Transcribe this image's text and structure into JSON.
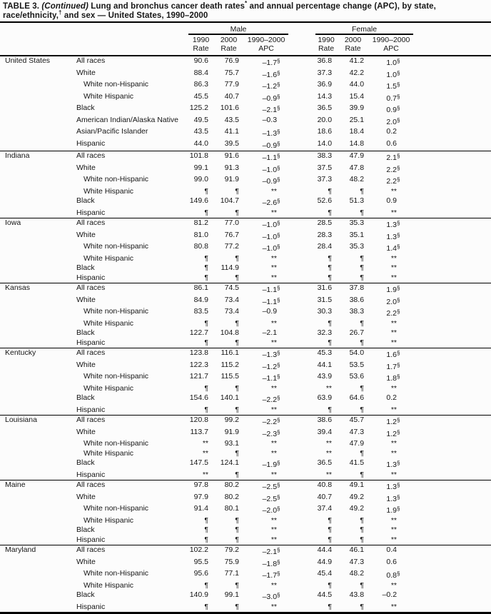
{
  "title": {
    "label": "TABLE 3. ",
    "continued": "(Continued)",
    "part1": " Lung and bronchus cancer death rates",
    "star_marker": "*",
    "part2": " and annual percentage change (APC), by state, race/ethnicity,",
    "dagger_marker": "†",
    "part3": " and sex — United States, 1990–2000"
  },
  "columns": {
    "male": "Male",
    "female": "Female",
    "sub": [
      {
        "l1": "1990",
        "l2": "Rate"
      },
      {
        "l1": "2000",
        "l2": "Rate"
      },
      {
        "l1": "1990–2000",
        "l2": "APC"
      }
    ]
  },
  "legend": {
    "significant_marker": "§",
    "suppressed_rate_marker": "¶",
    "suppressed_apc_marker": "**"
  },
  "sections": [
    {
      "state": "United States",
      "rows": [
        {
          "race": "All races",
          "indent": false,
          "m": [
            "90.6",
            "76.9",
            "–1.7§"
          ],
          "f": [
            "36.8",
            "41.2",
            "1.0§"
          ]
        },
        {
          "race": "White",
          "indent": false,
          "m": [
            "88.4",
            "75.7",
            "–1.6§"
          ],
          "f": [
            "37.3",
            "42.2",
            "1.0§"
          ]
        },
        {
          "race": "White non-Hispanic",
          "indent": true,
          "m": [
            "86.3",
            "77.9",
            "–1.2§"
          ],
          "f": [
            "36.9",
            "44.0",
            "1.5§"
          ]
        },
        {
          "race": "White Hispanic",
          "indent": true,
          "m": [
            "45.5",
            "40.7",
            "–0.9§"
          ],
          "f": [
            "14.3",
            "15.4",
            "0.7§"
          ]
        },
        {
          "race": "Black",
          "indent": false,
          "m": [
            "125.2",
            "101.6",
            "–2.1§"
          ],
          "f": [
            "36.5",
            "39.9",
            "0.9§"
          ]
        },
        {
          "race": "American Indian/Alaska Native",
          "indent": false,
          "m": [
            "49.5",
            "43.5",
            "–0.3"
          ],
          "f": [
            "20.0",
            "25.1",
            "2.0§"
          ]
        },
        {
          "race": "Asian/Pacific Islander",
          "indent": false,
          "m": [
            "43.5",
            "41.1",
            "–1.3§"
          ],
          "f": [
            "18.6",
            "18.4",
            "0.2"
          ]
        },
        {
          "race": "Hispanic",
          "indent": false,
          "m": [
            "44.0",
            "39.5",
            "–0.9§"
          ],
          "f": [
            "14.0",
            "14.8",
            "0.6"
          ]
        }
      ]
    },
    {
      "state": "Indiana",
      "rows": [
        {
          "race": "All races",
          "indent": false,
          "m": [
            "101.8",
            "91.6",
            "–1.1§"
          ],
          "f": [
            "38.3",
            "47.9",
            "2.1§"
          ]
        },
        {
          "race": "White",
          "indent": false,
          "m": [
            "99.1",
            "91.3",
            "–1.0§"
          ],
          "f": [
            "37.5",
            "47.8",
            "2.2§"
          ]
        },
        {
          "race": "White non-Hispanic",
          "indent": true,
          "m": [
            "99.0",
            "91.9",
            "–0.9§"
          ],
          "f": [
            "37.3",
            "48.2",
            "2.2§"
          ]
        },
        {
          "race": "White Hispanic",
          "indent": true,
          "m": [
            "¶",
            "¶",
            "**"
          ],
          "f": [
            "¶",
            "¶",
            "**"
          ]
        },
        {
          "race": "Black",
          "indent": false,
          "m": [
            "149.6",
            "104.7",
            "–2.6§"
          ],
          "f": [
            "52.6",
            "51.3",
            "0.9"
          ]
        },
        {
          "race": "Hispanic",
          "indent": false,
          "m": [
            "¶",
            "¶",
            "**"
          ],
          "f": [
            "¶",
            "¶",
            "**"
          ]
        }
      ]
    },
    {
      "state": "Iowa",
      "rows": [
        {
          "race": "All races",
          "indent": false,
          "m": [
            "81.2",
            "77.0",
            "–1.0§"
          ],
          "f": [
            "28.5",
            "35.3",
            "1.3§"
          ]
        },
        {
          "race": "White",
          "indent": false,
          "m": [
            "81.0",
            "76.7",
            "–1.0§"
          ],
          "f": [
            "28.3",
            "35.1",
            "1.3§"
          ]
        },
        {
          "race": "White non-Hispanic",
          "indent": true,
          "m": [
            "80.8",
            "77.2",
            "–1.0§"
          ],
          "f": [
            "28.4",
            "35.3",
            "1.4§"
          ]
        },
        {
          "race": "White Hispanic",
          "indent": true,
          "m": [
            "¶",
            "¶",
            "**"
          ],
          "f": [
            "¶",
            "¶",
            "**"
          ]
        },
        {
          "race": "Black",
          "indent": false,
          "m": [
            "¶",
            "114.9",
            "**"
          ],
          "f": [
            "¶",
            "¶",
            "**"
          ]
        },
        {
          "race": "Hispanic",
          "indent": false,
          "m": [
            "¶",
            "¶",
            "**"
          ],
          "f": [
            "¶",
            "¶",
            "**"
          ]
        }
      ]
    },
    {
      "state": "Kansas",
      "rows": [
        {
          "race": "All races",
          "indent": false,
          "m": [
            "86.1",
            "74.5",
            "–1.1§"
          ],
          "f": [
            "31.6",
            "37.8",
            "1.9§"
          ]
        },
        {
          "race": "White",
          "indent": false,
          "m": [
            "84.9",
            "73.4",
            "–1.1§"
          ],
          "f": [
            "31.5",
            "38.6",
            "2.0§"
          ]
        },
        {
          "race": "White non-Hispanic",
          "indent": true,
          "m": [
            "83.5",
            "73.4",
            "–0.9"
          ],
          "f": [
            "30.3",
            "38.3",
            "2.2§"
          ]
        },
        {
          "race": "White Hispanic",
          "indent": true,
          "m": [
            "¶",
            "¶",
            "**"
          ],
          "f": [
            "¶",
            "¶",
            "**"
          ]
        },
        {
          "race": "Black",
          "indent": false,
          "m": [
            "122.7",
            "104.8",
            "–2.1"
          ],
          "f": [
            "32.3",
            "26.7",
            "**"
          ]
        },
        {
          "race": "Hispanic",
          "indent": false,
          "m": [
            "¶",
            "¶",
            "**"
          ],
          "f": [
            "¶",
            "¶",
            "**"
          ]
        }
      ]
    },
    {
      "state": "Kentucky",
      "rows": [
        {
          "race": "All races",
          "indent": false,
          "m": [
            "123.8",
            "116.1",
            "–1.3§"
          ],
          "f": [
            "45.3",
            "54.0",
            "1.6§"
          ]
        },
        {
          "race": "White",
          "indent": false,
          "m": [
            "122.3",
            "115.2",
            "–1.2§"
          ],
          "f": [
            "44.1",
            "53.5",
            "1.7§"
          ]
        },
        {
          "race": "White non-Hispanic",
          "indent": true,
          "m": [
            "121.7",
            "115.5",
            "–1.1§"
          ],
          "f": [
            "43.9",
            "53.6",
            "1.8§"
          ]
        },
        {
          "race": "White Hispanic",
          "indent": true,
          "m": [
            "¶",
            "¶",
            "**"
          ],
          "f": [
            "**",
            "¶",
            "**"
          ]
        },
        {
          "race": "Black",
          "indent": false,
          "m": [
            "154.6",
            "140.1",
            "–2.2§"
          ],
          "f": [
            "63.9",
            "64.6",
            "0.2"
          ]
        },
        {
          "race": "Hispanic",
          "indent": false,
          "m": [
            "¶",
            "¶",
            "**"
          ],
          "f": [
            "¶",
            "¶",
            "**"
          ]
        }
      ]
    },
    {
      "state": "Louisiana",
      "rows": [
        {
          "race": "All races",
          "indent": false,
          "m": [
            "120.8",
            "99.2",
            "–2.2§"
          ],
          "f": [
            "38.6",
            "45.7",
            "1.2§"
          ]
        },
        {
          "race": "White",
          "indent": false,
          "m": [
            "113.7",
            "91.9",
            "–2.3§"
          ],
          "f": [
            "39.4",
            "47.3",
            "1.2§"
          ]
        },
        {
          "race": "White non-Hispanic",
          "indent": true,
          "m": [
            "**",
            "93.1",
            "**"
          ],
          "f": [
            "**",
            "47.9",
            "**"
          ]
        },
        {
          "race": "White Hispanic",
          "indent": true,
          "m": [
            "**",
            "¶",
            "**"
          ],
          "f": [
            "**",
            "¶",
            "**"
          ]
        },
        {
          "race": "Black",
          "indent": false,
          "m": [
            "147.5",
            "124.1",
            "–1.9§"
          ],
          "f": [
            "36.5",
            "41.5",
            "1.3§"
          ]
        },
        {
          "race": "Hispanic",
          "indent": false,
          "m": [
            "**",
            "¶",
            "**"
          ],
          "f": [
            "**",
            "¶",
            "**"
          ]
        }
      ]
    },
    {
      "state": "Maine",
      "rows": [
        {
          "race": "All races",
          "indent": false,
          "m": [
            "97.8",
            "80.2",
            "–2.5§"
          ],
          "f": [
            "40.8",
            "49.1",
            "1.3§"
          ]
        },
        {
          "race": "White",
          "indent": false,
          "m": [
            "97.9",
            "80.2",
            "–2.5§"
          ],
          "f": [
            "40.7",
            "49.2",
            "1.3§"
          ]
        },
        {
          "race": "White non-Hispanic",
          "indent": true,
          "m": [
            "91.4",
            "80.1",
            "–2.0§"
          ],
          "f": [
            "37.4",
            "49.2",
            "1.9§"
          ]
        },
        {
          "race": "White Hispanic",
          "indent": true,
          "m": [
            "¶",
            "¶",
            "**"
          ],
          "f": [
            "¶",
            "¶",
            "**"
          ]
        },
        {
          "race": "Black",
          "indent": false,
          "m": [
            "¶",
            "¶",
            "**"
          ],
          "f": [
            "¶",
            "¶",
            "**"
          ]
        },
        {
          "race": "Hispanic",
          "indent": false,
          "m": [
            "¶",
            "¶",
            "**"
          ],
          "f": [
            "¶",
            "¶",
            "**"
          ]
        }
      ]
    },
    {
      "state": "Maryland",
      "rows": [
        {
          "race": "All races",
          "indent": false,
          "m": [
            "102.2",
            "79.2",
            "–2.1§"
          ],
          "f": [
            "44.4",
            "46.1",
            "0.4"
          ]
        },
        {
          "race": "White",
          "indent": false,
          "m": [
            "95.5",
            "75.9",
            "–1.8§"
          ],
          "f": [
            "44.9",
            "47.3",
            "0.6"
          ]
        },
        {
          "race": "White non-Hispanic",
          "indent": true,
          "m": [
            "95.6",
            "77.1",
            "–1.7§"
          ],
          "f": [
            "45.4",
            "48.2",
            "0.8§"
          ]
        },
        {
          "race": "White Hispanic",
          "indent": true,
          "m": [
            "¶",
            "¶",
            "**"
          ],
          "f": [
            "¶",
            "¶",
            "**"
          ]
        },
        {
          "race": "Black",
          "indent": false,
          "m": [
            "140.9",
            "99.1",
            "–3.0§"
          ],
          "f": [
            "44.5",
            "43.8",
            "–0.2"
          ]
        },
        {
          "race": "Hispanic",
          "indent": false,
          "m": [
            "¶",
            "¶",
            "**"
          ],
          "f": [
            "¶",
            "¶",
            "**"
          ]
        }
      ]
    }
  ]
}
